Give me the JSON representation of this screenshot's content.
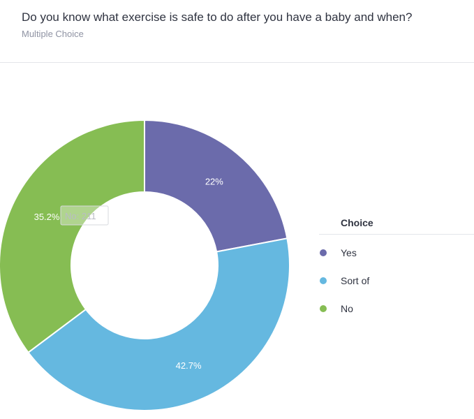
{
  "question": "Do you know what exercise is safe to do after you have a baby and when?",
  "question_type": "Multiple Choice",
  "legend": {
    "title": "Choice"
  },
  "tooltip": {
    "text": "No: 211"
  },
  "chart_data": {
    "type": "pie",
    "donut": true,
    "legend_title": "Choice",
    "legend_position": "right",
    "categories": [
      "Yes",
      "Sort of",
      "No"
    ],
    "values": [
      22,
      42.7,
      35.2
    ],
    "labels": [
      "22%",
      "42.7%",
      "35.2%"
    ],
    "colors": [
      "#6b6bab",
      "#65b8e0",
      "#86bd53"
    ],
    "hover": {
      "category": "No",
      "count": 211
    }
  }
}
